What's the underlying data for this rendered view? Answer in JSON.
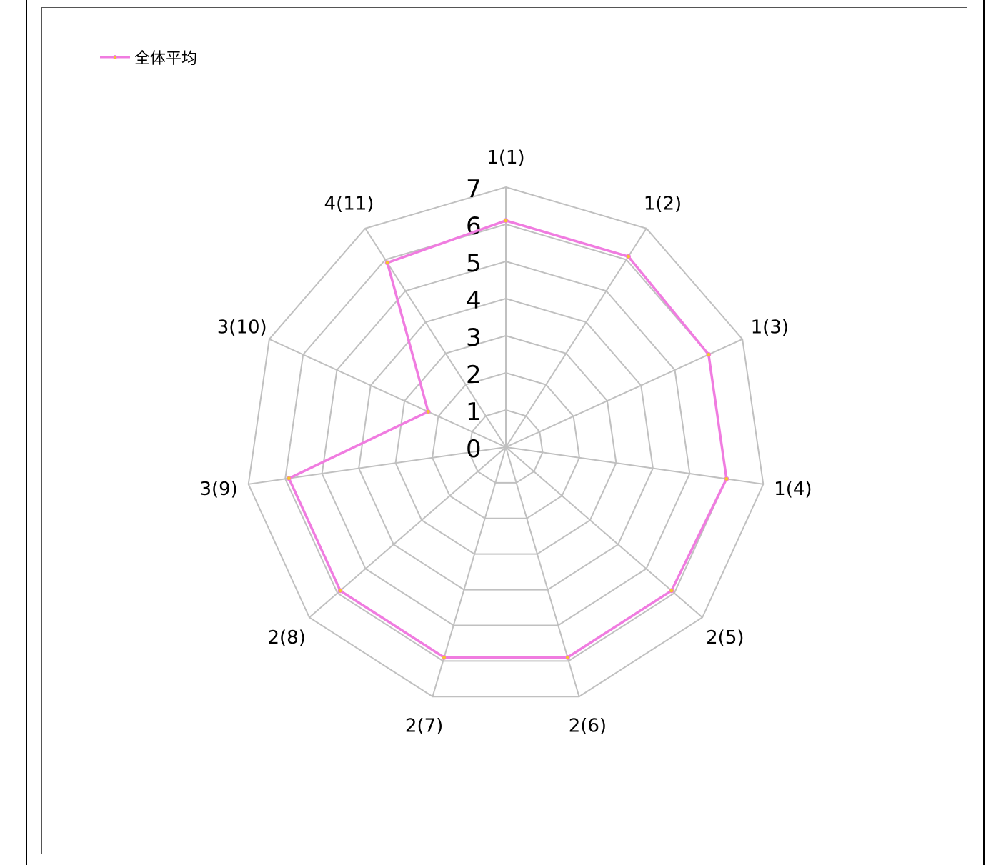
{
  "chart_data": {
    "type": "radar",
    "categories": [
      "1(1)",
      "1(2)",
      "1(3)",
      "1(4)",
      "2(5)",
      "2(6)",
      "2(7)",
      "2(8)",
      "3(9)",
      "3(10)",
      "4(11)"
    ],
    "series": [
      {
        "name": "全体平均",
        "values": [
          6.1,
          6.1,
          6.0,
          6.0,
          5.9,
          5.9,
          5.9,
          5.9,
          5.9,
          2.3,
          5.9
        ]
      }
    ],
    "rlim": [
      0,
      7
    ],
    "ticks": [
      "0",
      "1",
      "2",
      "3",
      "4",
      "5",
      "6",
      "7"
    ],
    "grid": true,
    "legend_position": "top-left",
    "colors": {
      "series": "#f07ce0",
      "marker": "#f4c430",
      "grid": "#c0c0c0"
    }
  }
}
